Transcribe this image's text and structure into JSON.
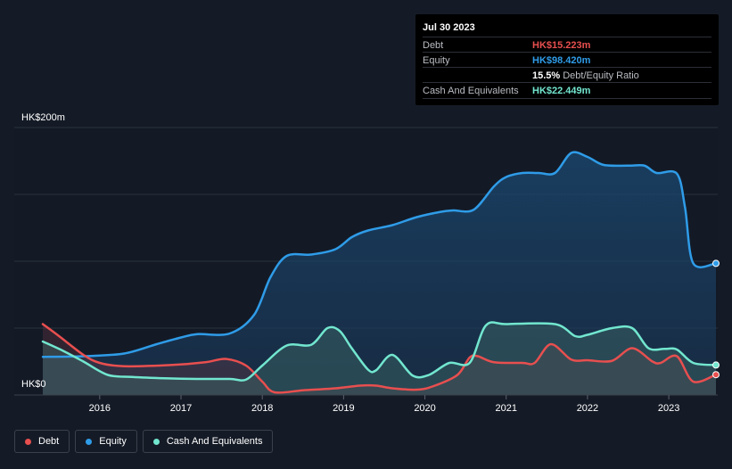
{
  "tooltip": {
    "date": "Jul 30 2023",
    "rows": [
      {
        "label": "Debt",
        "value": "HK$15.223m",
        "color": "#e84f4f"
      },
      {
        "label": "Equity",
        "value": "HK$98.420m",
        "color": "#2f9ce8"
      },
      {
        "label": "",
        "value": "15.5%",
        "sub": "Debt/Equity Ratio",
        "color": "#ffffff"
      },
      {
        "label": "Cash And Equivalents",
        "value": "HK$22.449m",
        "color": "#72e6cf"
      }
    ]
  },
  "legend": [
    {
      "label": "Debt",
      "color": "#e84f4f"
    },
    {
      "label": "Equity",
      "color": "#2f9ce8"
    },
    {
      "label": "Cash And Equivalents",
      "color": "#72e6cf"
    }
  ],
  "chart_data": {
    "type": "area",
    "ylabel_top": "HK$200m",
    "ylabel_bottom": "HK$0",
    "ylim": [
      0,
      200
    ],
    "xlim": [
      2015.3,
      2023.58
    ],
    "x_ticks": [
      2016,
      2017,
      2018,
      2019,
      2020,
      2021,
      2022,
      2023
    ],
    "x_tick_labels": [
      "2016",
      "2017",
      "2018",
      "2019",
      "2020",
      "2021",
      "2022",
      "2023"
    ],
    "grid": true,
    "series": [
      {
        "name": "Equity",
        "color": "#2f9ce8",
        "points": [
          [
            2015.3,
            28.5
          ],
          [
            2015.8,
            29
          ],
          [
            2016.3,
            31
          ],
          [
            2016.7,
            38
          ],
          [
            2017.0,
            43
          ],
          [
            2017.2,
            45.5
          ],
          [
            2017.6,
            46
          ],
          [
            2017.9,
            60
          ],
          [
            2018.1,
            88
          ],
          [
            2018.3,
            104
          ],
          [
            2018.6,
            105
          ],
          [
            2018.9,
            109
          ],
          [
            2019.1,
            118
          ],
          [
            2019.3,
            123
          ],
          [
            2019.6,
            127
          ],
          [
            2019.9,
            133
          ],
          [
            2020.2,
            137
          ],
          [
            2020.35,
            138
          ],
          [
            2020.6,
            138.5
          ],
          [
            2020.85,
            156
          ],
          [
            2021.0,
            163
          ],
          [
            2021.2,
            166
          ],
          [
            2021.4,
            166
          ],
          [
            2021.6,
            166
          ],
          [
            2021.8,
            181
          ],
          [
            2022.0,
            178
          ],
          [
            2022.2,
            172
          ],
          [
            2022.5,
            171.5
          ],
          [
            2022.7,
            171.5
          ],
          [
            2022.85,
            166
          ],
          [
            2023.1,
            165.5
          ],
          [
            2023.2,
            140
          ],
          [
            2023.3,
            98.5
          ],
          [
            2023.58,
            98.4
          ]
        ]
      },
      {
        "name": "Debt",
        "color": "#e84f4f",
        "points": [
          [
            2015.3,
            53
          ],
          [
            2015.5,
            44
          ],
          [
            2015.8,
            30
          ],
          [
            2016.0,
            24
          ],
          [
            2016.3,
            21.5
          ],
          [
            2016.9,
            22.5
          ],
          [
            2017.3,
            24.5
          ],
          [
            2017.55,
            27
          ],
          [
            2017.8,
            22
          ],
          [
            2018.0,
            10
          ],
          [
            2018.15,
            2
          ],
          [
            2018.5,
            3.5
          ],
          [
            2018.9,
            5
          ],
          [
            2019.2,
            7
          ],
          [
            2019.4,
            7
          ],
          [
            2019.6,
            5
          ],
          [
            2019.9,
            4
          ],
          [
            2020.1,
            6.5
          ],
          [
            2020.4,
            15
          ],
          [
            2020.55,
            28
          ],
          [
            2020.65,
            29
          ],
          [
            2020.85,
            24.5
          ],
          [
            2021.2,
            24
          ],
          [
            2021.35,
            24
          ],
          [
            2021.55,
            38
          ],
          [
            2021.8,
            26.5
          ],
          [
            2022.0,
            26
          ],
          [
            2022.3,
            25.5
          ],
          [
            2022.55,
            35
          ],
          [
            2022.8,
            25
          ],
          [
            2022.9,
            24
          ],
          [
            2023.1,
            29
          ],
          [
            2023.3,
            10
          ],
          [
            2023.58,
            15.2
          ]
        ]
      },
      {
        "name": "Cash And Equivalents",
        "color": "#72e6cf",
        "points": [
          [
            2015.3,
            40
          ],
          [
            2015.55,
            33
          ],
          [
            2015.8,
            25
          ],
          [
            2016.1,
            15
          ],
          [
            2016.4,
            13.5
          ],
          [
            2016.8,
            12.5
          ],
          [
            2017.2,
            12
          ],
          [
            2017.6,
            12
          ],
          [
            2017.8,
            11.5
          ],
          [
            2018.0,
            22
          ],
          [
            2018.3,
            37
          ],
          [
            2018.6,
            37.5
          ],
          [
            2018.8,
            50
          ],
          [
            2018.95,
            48
          ],
          [
            2019.1,
            35
          ],
          [
            2019.3,
            19
          ],
          [
            2019.4,
            18.5
          ],
          [
            2019.6,
            30
          ],
          [
            2019.85,
            14.5
          ],
          [
            2020.05,
            15
          ],
          [
            2020.3,
            24
          ],
          [
            2020.55,
            24
          ],
          [
            2020.75,
            52
          ],
          [
            2021.0,
            53
          ],
          [
            2021.6,
            53
          ],
          [
            2021.85,
            44
          ],
          [
            2022.0,
            45
          ],
          [
            2022.3,
            50
          ],
          [
            2022.55,
            50
          ],
          [
            2022.75,
            35
          ],
          [
            2022.95,
            34.5
          ],
          [
            2023.1,
            34
          ],
          [
            2023.3,
            24
          ],
          [
            2023.58,
            22.4
          ]
        ]
      }
    ]
  }
}
